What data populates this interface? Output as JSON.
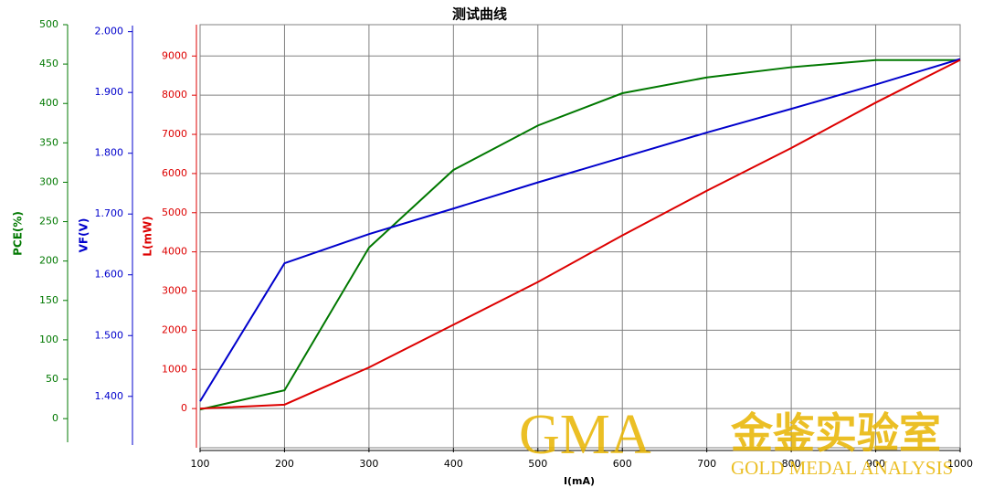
{
  "chart_data": {
    "type": "line",
    "title": "测试曲线",
    "xlabel": "I(mA)",
    "x": [
      100,
      200,
      300,
      400,
      500,
      600,
      700,
      800,
      900,
      1000
    ],
    "xlim": [
      100,
      1000
    ],
    "xticks": [
      100,
      200,
      300,
      400,
      500,
      600,
      700,
      800,
      900,
      1000
    ],
    "ylabel": "L(mW)",
    "ylim": [
      -1000,
      9800
    ],
    "yticks": [
      0,
      1000,
      2000,
      3000,
      4000,
      5000,
      6000,
      7000,
      8000,
      9000
    ],
    "y2label": "VF(V)",
    "y2lim": [
      1.32,
      2.01
    ],
    "y2ticks": [
      {
        "value": 1.4,
        "label": "1.400"
      },
      {
        "value": 1.5,
        "label": "1.500"
      },
      {
        "value": 1.6,
        "label": "1.600"
      },
      {
        "value": 1.7,
        "label": "1.700"
      },
      {
        "value": 1.8,
        "label": "1.800"
      },
      {
        "value": 1.9,
        "label": "1.900"
      },
      {
        "value": 2.0,
        "label": "2.000"
      }
    ],
    "y3label": "PCE(%)",
    "y3lim": [
      -30,
      500
    ],
    "y3ticks": [
      0,
      50,
      100,
      150,
      200,
      250,
      300,
      350,
      400,
      450,
      500
    ],
    "grid": true,
    "series": [
      {
        "color": "#007800",
        "axis": "y3",
        "values": [
          11.6,
          36,
          217,
          315.6,
          372,
          413,
          433,
          446,
          455,
          455
        ]
      },
      {
        "color": "#0000cc",
        "axis": "y2",
        "values": [
          1.392,
          1.619,
          1.667,
          1.709,
          1.752,
          1.793,
          1.834,
          1.873,
          1.913,
          1.955
        ]
      },
      {
        "color": "#dd0000",
        "axis": "y",
        "values": [
          0,
          100,
          1050,
          2140,
          3230,
          4420,
          5560,
          6650,
          7810,
          8900
        ]
      }
    ]
  },
  "watermark": {
    "logo": "GMA",
    "name": "金鉴实验室",
    "subtitle": "GOLD MEDAL ANALYSIS"
  }
}
